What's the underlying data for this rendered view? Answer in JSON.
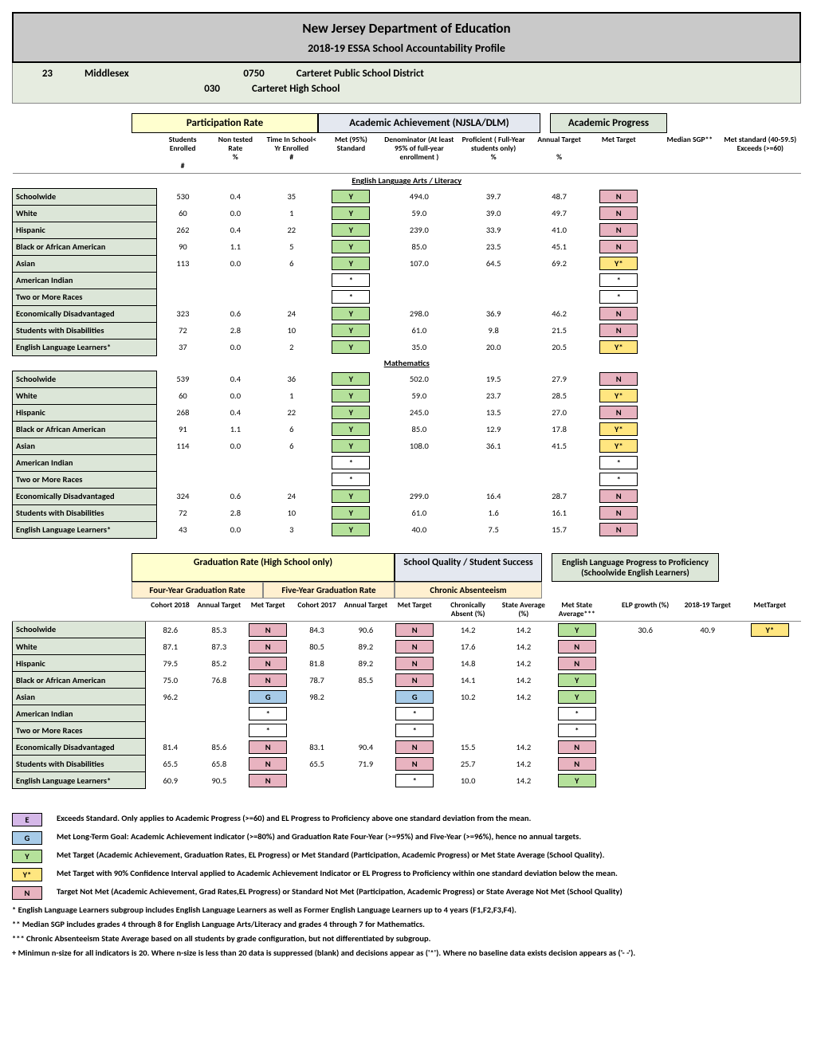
{
  "header": {
    "title": "New Jersey Department of Education",
    "subtitle": "2018-19 ESSA School Accountability Profile",
    "county_code": "23",
    "county": "Middlesex",
    "district_code": "0750",
    "district": "Carteret Public School District",
    "school_code": "030",
    "school": "Carteret High School"
  },
  "section_headers": {
    "participation": "Participation Rate",
    "achievement": "Academic Achievement (NJSLA/DLM)",
    "progress": "Academic Progress"
  },
  "col_headers": {
    "enrolled": "Students Enrolled",
    "enrolled2": "#",
    "nontested": "Non tested Rate",
    "nontested2": "%",
    "timein": "Time In School< Yr Enrolled",
    "timein2": "#",
    "met95": "Met (95%) Standard",
    "denom": "Denominator (At least 95% of full-year enrollment )",
    "prof": "Proficient ( Full-Year students only)",
    "prof2": "%",
    "annual": "Annual Target",
    "annual2": "%",
    "mettgt": "Met Target",
    "median": "Median SGP**",
    "metstd": "Met standard (40-59.5) Exceeds (>=60)"
  },
  "subjects": {
    "ela": "English Language Arts / Literacy",
    "math": "Mathematics"
  },
  "row_labels": [
    "Schoolwide",
    "White",
    "Hispanic",
    "Black or African American",
    "Asian",
    "American Indian",
    "Two or More Races",
    "Economically Disadvantaged",
    "Students with Disabilities",
    "English Language Learners*"
  ],
  "ela": [
    {
      "e": "530",
      "nt": "0.4",
      "ti": "35",
      "m95": "Y",
      "d": "494.0",
      "p": "39.7",
      "a": "48.7",
      "mt": "N",
      "sgp": "",
      "ms": ""
    },
    {
      "e": "60",
      "nt": "0.0",
      "ti": "1",
      "m95": "Y",
      "d": "59.0",
      "p": "39.0",
      "a": "49.7",
      "mt": "N",
      "sgp": "",
      "ms": ""
    },
    {
      "e": "262",
      "nt": "0.4",
      "ti": "22",
      "m95": "Y",
      "d": "239.0",
      "p": "33.9",
      "a": "41.0",
      "mt": "N",
      "sgp": "",
      "ms": ""
    },
    {
      "e": "90",
      "nt": "1.1",
      "ti": "5",
      "m95": "Y",
      "d": "85.0",
      "p": "23.5",
      "a": "45.1",
      "mt": "N",
      "sgp": "",
      "ms": ""
    },
    {
      "e": "113",
      "nt": "0.0",
      "ti": "6",
      "m95": "Y",
      "d": "107.0",
      "p": "64.5",
      "a": "69.2",
      "mt": "Y*",
      "sgp": "",
      "ms": ""
    },
    {
      "e": "",
      "nt": "",
      "ti": "",
      "m95": "*",
      "d": "",
      "p": "",
      "a": "",
      "mt": "*",
      "sgp": "",
      "ms": ""
    },
    {
      "e": "",
      "nt": "",
      "ti": "",
      "m95": "*",
      "d": "",
      "p": "",
      "a": "",
      "mt": "*",
      "sgp": "",
      "ms": ""
    },
    {
      "e": "323",
      "nt": "0.6",
      "ti": "24",
      "m95": "Y",
      "d": "298.0",
      "p": "36.9",
      "a": "46.2",
      "mt": "N",
      "sgp": "",
      "ms": ""
    },
    {
      "e": "72",
      "nt": "2.8",
      "ti": "10",
      "m95": "Y",
      "d": "61.0",
      "p": "9.8",
      "a": "21.5",
      "mt": "N",
      "sgp": "",
      "ms": ""
    },
    {
      "e": "37",
      "nt": "0.0",
      "ti": "2",
      "m95": "Y",
      "d": "35.0",
      "p": "20.0",
      "a": "20.5",
      "mt": "Y*",
      "sgp": "",
      "ms": ""
    }
  ],
  "math": [
    {
      "e": "539",
      "nt": "0.4",
      "ti": "36",
      "m95": "Y",
      "d": "502.0",
      "p": "19.5",
      "a": "27.9",
      "mt": "N",
      "sgp": "",
      "ms": ""
    },
    {
      "e": "60",
      "nt": "0.0",
      "ti": "1",
      "m95": "Y",
      "d": "59.0",
      "p": "23.7",
      "a": "28.5",
      "mt": "Y*",
      "sgp": "",
      "ms": ""
    },
    {
      "e": "268",
      "nt": "0.4",
      "ti": "22",
      "m95": "Y",
      "d": "245.0",
      "p": "13.5",
      "a": "27.0",
      "mt": "N",
      "sgp": "",
      "ms": ""
    },
    {
      "e": "91",
      "nt": "1.1",
      "ti": "6",
      "m95": "Y",
      "d": "85.0",
      "p": "12.9",
      "a": "17.8",
      "mt": "Y*",
      "sgp": "",
      "ms": ""
    },
    {
      "e": "114",
      "nt": "0.0",
      "ti": "6",
      "m95": "Y",
      "d": "108.0",
      "p": "36.1",
      "a": "41.5",
      "mt": "Y*",
      "sgp": "",
      "ms": ""
    },
    {
      "e": "",
      "nt": "",
      "ti": "",
      "m95": "*",
      "d": "",
      "p": "",
      "a": "",
      "mt": "*",
      "sgp": "",
      "ms": ""
    },
    {
      "e": "",
      "nt": "",
      "ti": "",
      "m95": "*",
      "d": "",
      "p": "",
      "a": "",
      "mt": "*",
      "sgp": "",
      "ms": ""
    },
    {
      "e": "324",
      "nt": "0.6",
      "ti": "24",
      "m95": "Y",
      "d": "299.0",
      "p": "16.4",
      "a": "28.7",
      "mt": "N",
      "sgp": "",
      "ms": ""
    },
    {
      "e": "72",
      "nt": "2.8",
      "ti": "10",
      "m95": "Y",
      "d": "61.0",
      "p": "1.6",
      "a": "16.1",
      "mt": "N",
      "sgp": "",
      "ms": ""
    },
    {
      "e": "43",
      "nt": "0.0",
      "ti": "3",
      "m95": "Y",
      "d": "40.0",
      "p": "7.5",
      "a": "15.7",
      "mt": "N",
      "sgp": "",
      "ms": ""
    }
  ],
  "grad_headers": {
    "grad": "Graduation Rate (High School only)",
    "sq": "School Quality / Student Success",
    "elp": "English Language Progress to Proficiency",
    "elp2": "(Schoolwide English Learners)",
    "four": "Four-Year Graduation Rate",
    "five": "Five-Year Graduation Rate",
    "chronic": "Chronic Absenteeism"
  },
  "grad_cols": {
    "c18": "Cohort 2018",
    "at1": "Annual Target",
    "mt1": "Met Target",
    "c17": "Cohort 2017",
    "at2": "Annual Target",
    "mt2": "Met Target",
    "ca": "Chronically Absent (%)",
    "sa": "State Average (%)",
    "msa": "Met State Average***",
    "elpg": "ELP growth (%)",
    "elpt": "2018-19 Target",
    "elpm": "MetTarget"
  },
  "grad": [
    {
      "c18": "82.6",
      "at1": "85.3",
      "mt1": "N",
      "c17": "84.3",
      "at2": "90.6",
      "mt2": "N",
      "ca": "14.2",
      "sa": "14.2",
      "msa": "Y"
    },
    {
      "c18": "87.1",
      "at1": "87.3",
      "mt1": "N",
      "c17": "80.5",
      "at2": "89.2",
      "mt2": "N",
      "ca": "17.6",
      "sa": "14.2",
      "msa": "N"
    },
    {
      "c18": "79.5",
      "at1": "85.2",
      "mt1": "N",
      "c17": "81.8",
      "at2": "89.2",
      "mt2": "N",
      "ca": "14.8",
      "sa": "14.2",
      "msa": "N"
    },
    {
      "c18": "75.0",
      "at1": "76.8",
      "mt1": "N",
      "c17": "78.7",
      "at2": "85.5",
      "mt2": "N",
      "ca": "14.1",
      "sa": "14.2",
      "msa": "Y"
    },
    {
      "c18": "96.2",
      "at1": "",
      "mt1": "G",
      "c17": "98.2",
      "at2": "",
      "mt2": "G",
      "ca": "10.2",
      "sa": "14.2",
      "msa": "Y"
    },
    {
      "c18": "",
      "at1": "",
      "mt1": "*",
      "c17": "",
      "at2": "",
      "mt2": "*",
      "ca": "",
      "sa": "",
      "msa": "*"
    },
    {
      "c18": "",
      "at1": "",
      "mt1": "*",
      "c17": "",
      "at2": "",
      "mt2": "*",
      "ca": "",
      "sa": "",
      "msa": "*"
    },
    {
      "c18": "81.4",
      "at1": "85.6",
      "mt1": "N",
      "c17": "83.1",
      "at2": "90.4",
      "mt2": "N",
      "ca": "15.5",
      "sa": "14.2",
      "msa": "N"
    },
    {
      "c18": "65.5",
      "at1": "65.8",
      "mt1": "N",
      "c17": "65.5",
      "at2": "71.9",
      "mt2": "N",
      "ca": "25.7",
      "sa": "14.2",
      "msa": "N"
    },
    {
      "c18": "60.9",
      "at1": "90.5",
      "mt1": "N",
      "c17": "",
      "at2": "",
      "mt2": "*",
      "ca": "10.0",
      "sa": "14.2",
      "msa": "Y"
    }
  ],
  "elp": {
    "g": "30.6",
    "t": "40.9",
    "m": "Y*"
  },
  "legend": [
    {
      "b": "E",
      "c": "#d5b8e8",
      "t": "Exceeds Standard. Only applies to Academic Progress (>=60) and EL Progress to Proficiency above one standard deviation from the mean."
    },
    {
      "b": "G",
      "c": "#a7cbe8",
      "t": "Met Long-Term Goal: Academic Achievement indicator (>=80%) and Graduation Rate Four-Year (>=95%) and Five-Year (>=96%), hence no annual targets."
    },
    {
      "b": "Y",
      "c": "#b5e19b",
      "t": "Met Target (Academic Achievement, Graduation Rates, EL Progress) or Met Standard (Participation, Academic Progress) or Met State Average (School Quality)."
    },
    {
      "b": "Y*",
      "c": "#ffe680",
      "t": "Met Target with 90% Confidence Interval applied to Academic Achievement Indicator or  EL Progress to Proficiency within one standard deviation below the mean."
    },
    {
      "b": "N",
      "c": "#e8b3c0",
      "t": "Target Not Met (Academic Achievement, Grad Rates,EL Progress) or Standard Not Met (Participation, Academic Progress) or State Average Not Met (School Quality)"
    }
  ],
  "footnotes": [
    "* English Language Learners subgroup includes English Language Learners as well as Former English Language Learners up to 4 years (F1,F2,F3,F4).",
    "** Median SGP includes grades 4 through 8 for English Language Arts/Literacy and grades 4 through 7 for Mathematics.",
    "*** Chronic Absenteeism State Average based on all students by grade configuration, but not differentiated by subgroup.",
    "+ Minimun n-size for all indicators is 20. Where n-size is less than 20 data is suppressed (blank) and decisions appear as ('*'). Where no baseline data exists decision appears as  ('- -')."
  ],
  "widths": {
    "label": 150,
    "c1": 55,
    "c2": 55,
    "c3": 62,
    "c4": 62,
    "c5": 80,
    "c6": 75,
    "c7": 62,
    "c8": 62,
    "c9": 62,
    "c10": 85
  }
}
